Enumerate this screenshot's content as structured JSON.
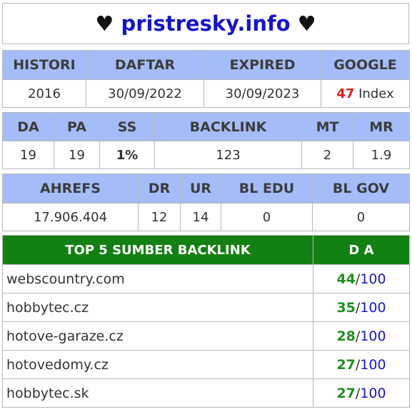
{
  "title": {
    "heart": "♥",
    "site": "pristresky.info"
  },
  "row1": {
    "headers": [
      "HISTORI",
      "DAFTAR",
      "EXPIRED",
      "GOOGLE"
    ],
    "values": {
      "histori": "2016",
      "daftar": "30/09/2022",
      "expired": "30/09/2023",
      "google_count": "47",
      "google_suffix": " Index"
    }
  },
  "row2": {
    "headers": [
      "DA",
      "PA",
      "SS",
      "BACKLINK",
      "MT",
      "MR"
    ],
    "values": [
      "19",
      "19",
      "1%",
      "123",
      "2",
      "1.9"
    ]
  },
  "row3": {
    "headers": [
      "AHREFS",
      "DR",
      "UR",
      "BL EDU",
      "BL GOV"
    ],
    "values": [
      "17.906.404",
      "12",
      "14",
      "0",
      "0"
    ]
  },
  "top5": {
    "header_left": "TOP 5 SUMBER BACKLINK",
    "header_right": "D A",
    "separator": "/",
    "rows": [
      {
        "domain": "webscountry.com",
        "da": "44",
        "max": "100"
      },
      {
        "domain": "hobbytec.cz",
        "da": "35",
        "max": "100"
      },
      {
        "domain": "hotove-garaze.cz",
        "da": "28",
        "max": "100"
      },
      {
        "domain": "hotovedomy.cz",
        "da": "27",
        "max": "100"
      },
      {
        "domain": "hobbytec.sk",
        "da": "27",
        "max": "100"
      }
    ]
  },
  "colors": {
    "header_bg": "#a4bdf9",
    "top5_header_bg": "#128012",
    "green": "#1f8f1f",
    "red": "#e01b1b",
    "blue": "#1a1ab4"
  }
}
